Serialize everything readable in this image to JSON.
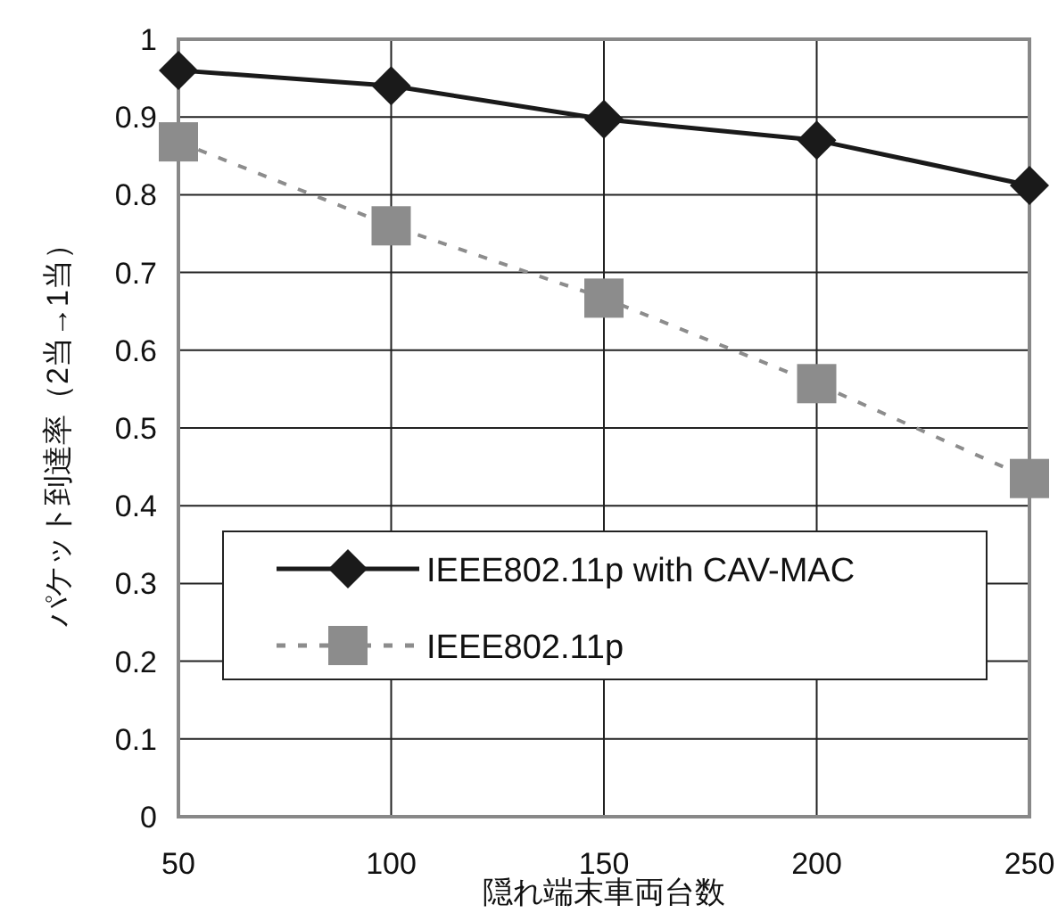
{
  "chart_data": {
    "type": "line",
    "xlabel": "隠れ端末車両台数",
    "ylabel": "パケット到達率（2当→1当）",
    "x": [
      50,
      100,
      150,
      200,
      250
    ],
    "xlim": [
      50,
      250
    ],
    "xticks": [
      50,
      100,
      150,
      200,
      250
    ],
    "ylim": [
      0,
      1
    ],
    "yticks": [
      0,
      0.1,
      0.2,
      0.3,
      0.4,
      0.5,
      0.6,
      0.7,
      0.8,
      0.9,
      1
    ],
    "grid": true,
    "legend": "bottom",
    "series": [
      {
        "name": "IEEE802.11p with CAV-MAC",
        "color": "#1a1a1a",
        "marker": "diamond",
        "line_style": "solid",
        "values": [
          0.96,
          0.94,
          0.897,
          0.87,
          0.812
        ]
      },
      {
        "name": "IEEE802.11p",
        "color": "#8c8c8c",
        "marker": "square",
        "line_style": "dashed",
        "values": [
          0.868,
          0.76,
          0.667,
          0.557,
          0.435
        ]
      }
    ]
  }
}
